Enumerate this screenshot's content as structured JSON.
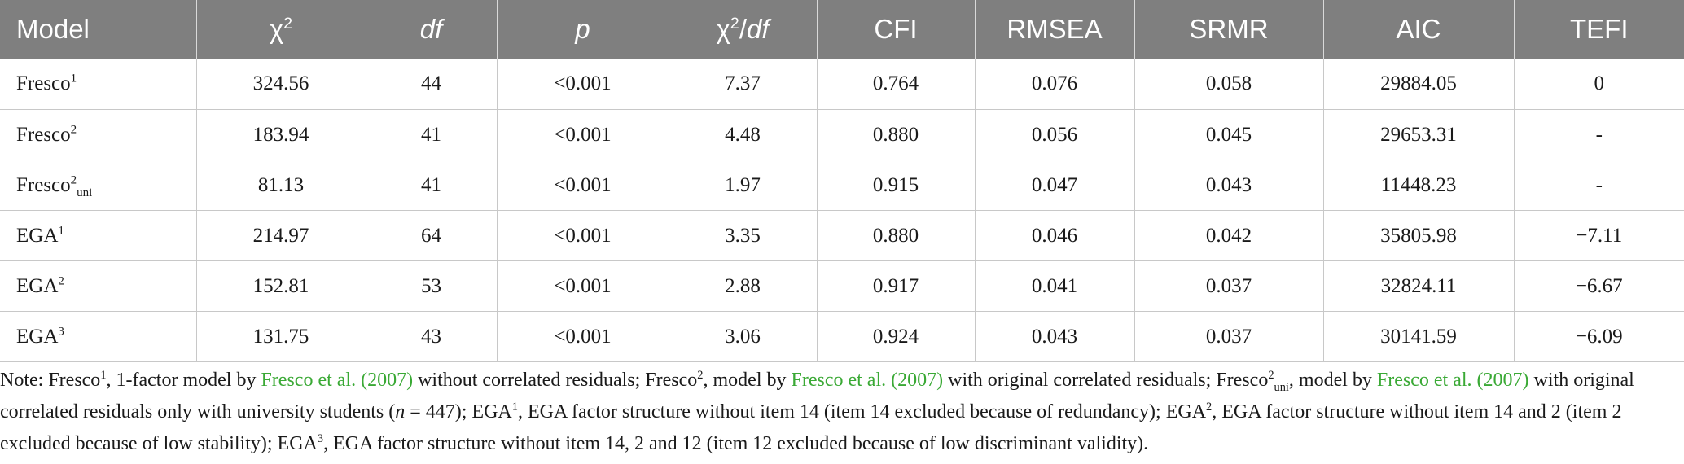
{
  "headers": {
    "model": "Model",
    "chi2": "χ",
    "chi2_sup": "2",
    "df": "df",
    "p": "p",
    "chi2df_a": "χ",
    "chi2df_sup": "2",
    "chi2df_b": "/",
    "chi2df_c": "df",
    "cfi": "CFI",
    "rmsea": "RMSEA",
    "srmr": "SRMR",
    "aic": "AIC",
    "tefi": "TEFI"
  },
  "rows": [
    {
      "model": "Fresco",
      "sup": "1",
      "sub": "",
      "chi2": "324.56",
      "df": "44",
      "p": "<0.001",
      "chi2df": "7.37",
      "cfi": "0.764",
      "rmsea": "0.076",
      "srmr": "0.058",
      "aic": "29884.05",
      "tefi": "0"
    },
    {
      "model": "Fresco",
      "sup": "2",
      "sub": "",
      "chi2": "183.94",
      "df": "41",
      "p": "<0.001",
      "chi2df": "4.48",
      "cfi": "0.880",
      "rmsea": "0.056",
      "srmr": "0.045",
      "aic": "29653.31",
      "tefi": "-"
    },
    {
      "model": "Fresco",
      "sup": "2",
      "sub": "uni",
      "chi2": "81.13",
      "df": "41",
      "p": "<0.001",
      "chi2df": "1.97",
      "cfi": "0.915",
      "rmsea": "0.047",
      "srmr": "0.043",
      "aic": "11448.23",
      "tefi": "-"
    },
    {
      "model": "EGA",
      "sup": "1",
      "sub": "",
      "chi2": "214.97",
      "df": "64",
      "p": "<0.001",
      "chi2df": "3.35",
      "cfi": "0.880",
      "rmsea": "0.046",
      "srmr": "0.042",
      "aic": "35805.98",
      "tefi": "−7.11"
    },
    {
      "model": "EGA",
      "sup": "2",
      "sub": "",
      "chi2": "152.81",
      "df": "53",
      "p": "<0.001",
      "chi2df": "2.88",
      "cfi": "0.917",
      "rmsea": "0.041",
      "srmr": "0.037",
      "aic": "32824.11",
      "tefi": "−6.67"
    },
    {
      "model": "EGA",
      "sup": "3",
      "sub": "",
      "chi2": "131.75",
      "df": "43",
      "p": "<0.001",
      "chi2df": "3.06",
      "cfi": "0.924",
      "rmsea": "0.043",
      "srmr": "0.037",
      "aic": "30141.59",
      "tefi": "−6.09"
    }
  ],
  "note": {
    "n1": "Note: Fresco",
    "n1_sup": "1",
    "n2": ", 1-factor model by ",
    "ref1": "Fresco et al. (2007)",
    "n3": " without correlated residuals; Fresco",
    "n3_sup": "2",
    "n4": ", model by ",
    "ref2": "Fresco et al. (2007)",
    "n5": " with original correlated residuals; Fresco",
    "n5_sup": "2",
    "n5_sub": "uni",
    "n6": ", model by ",
    "ref3": "Fresco et al. (2007)",
    "n7": " with original correlated residuals only with university students (",
    "n7_var": "n",
    "n7b": " = 447); EGA",
    "n7_sup": "1",
    "n8": ", EGA factor structure without item 14 (item 14 excluded because of redundancy); EGA",
    "n8_sup": "2",
    "n9": ", EGA factor structure without item 14 and 2 (item 2 excluded because of low stability); EGA",
    "n9_sup": "3",
    "n10": ", EGA factor structure without item 14, 2 and 12 (item 12 excluded because of low discriminant validity)."
  }
}
